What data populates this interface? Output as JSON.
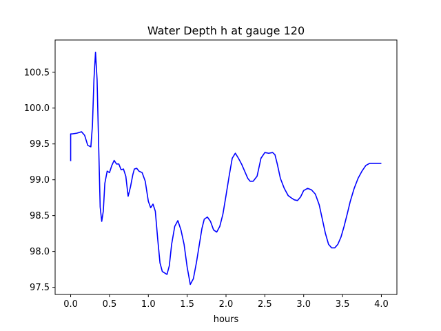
{
  "chart_data": {
    "type": "line",
    "title": "Water Depth h at gauge 120",
    "xlabel": "hours",
    "ylabel": "",
    "xlim": [
      -0.2,
      4.2
    ],
    "ylim": [
      97.4,
      100.95
    ],
    "xticks": [
      0.0,
      0.5,
      1.0,
      1.5,
      2.0,
      2.5,
      3.0,
      3.5,
      4.0
    ],
    "xtick_labels": [
      "0.0",
      "0.5",
      "1.0",
      "1.5",
      "2.0",
      "2.5",
      "3.0",
      "3.5",
      "4.0"
    ],
    "yticks": [
      97.5,
      98.0,
      98.5,
      99.0,
      99.5,
      100.0,
      100.5
    ],
    "ytick_labels": [
      "97.5",
      "98.0",
      "98.5",
      "99.0",
      "99.5",
      "100.0",
      "100.5"
    ],
    "grid": false,
    "color": "#0000ff",
    "series": [
      {
        "x": [
          0.0,
          0.0,
          0.02,
          0.08,
          0.14,
          0.18,
          0.22,
          0.26,
          0.28,
          0.3,
          0.32,
          0.34,
          0.36,
          0.38,
          0.4,
          0.42,
          0.44,
          0.47,
          0.5,
          0.53,
          0.56,
          0.59,
          0.62,
          0.65,
          0.68,
          0.71,
          0.74,
          0.77,
          0.8,
          0.82,
          0.85,
          0.88,
          0.92,
          0.96,
          1.0,
          1.03,
          1.06,
          1.09,
          1.12,
          1.15,
          1.18,
          1.21,
          1.24,
          1.27,
          1.3,
          1.34,
          1.38,
          1.42,
          1.46,
          1.5,
          1.54,
          1.58,
          1.62,
          1.66,
          1.69,
          1.72,
          1.76,
          1.8,
          1.84,
          1.88,
          1.92,
          1.96,
          2.0,
          2.04,
          2.08,
          2.12,
          2.16,
          2.2,
          2.24,
          2.28,
          2.31,
          2.35,
          2.4,
          2.45,
          2.5,
          2.55,
          2.6,
          2.63,
          2.66,
          2.7,
          2.75,
          2.8,
          2.85,
          2.88,
          2.92,
          2.96,
          3.0,
          3.05,
          3.1,
          3.15,
          3.2,
          3.24,
          3.28,
          3.32,
          3.36,
          3.4,
          3.44,
          3.48,
          3.52,
          3.56,
          3.6,
          3.65,
          3.7,
          3.75,
          3.8,
          3.85,
          3.9,
          3.95,
          4.0
        ],
        "y": [
          99.26,
          99.64,
          99.64,
          99.65,
          99.67,
          99.62,
          99.48,
          99.46,
          99.75,
          100.4,
          100.78,
          100.4,
          99.5,
          98.62,
          98.42,
          98.56,
          98.95,
          99.12,
          99.1,
          99.2,
          99.27,
          99.22,
          99.22,
          99.14,
          99.15,
          99.05,
          98.77,
          98.9,
          99.07,
          99.15,
          99.16,
          99.12,
          99.1,
          98.98,
          98.7,
          98.61,
          98.66,
          98.56,
          98.18,
          97.84,
          97.72,
          97.7,
          97.68,
          97.8,
          98.1,
          98.35,
          98.43,
          98.3,
          98.1,
          97.78,
          97.54,
          97.62,
          97.85,
          98.12,
          98.32,
          98.45,
          98.48,
          98.42,
          98.3,
          98.27,
          98.35,
          98.52,
          98.78,
          99.05,
          99.3,
          99.37,
          99.3,
          99.22,
          99.12,
          99.02,
          98.98,
          98.98,
          99.05,
          99.3,
          99.38,
          99.37,
          99.38,
          99.35,
          99.22,
          99.02,
          98.88,
          98.78,
          98.74,
          98.72,
          98.71,
          98.76,
          98.85,
          98.88,
          98.86,
          98.8,
          98.65,
          98.45,
          98.25,
          98.1,
          98.05,
          98.05,
          98.1,
          98.2,
          98.35,
          98.52,
          98.7,
          98.88,
          99.02,
          99.12,
          99.2,
          99.23,
          99.23,
          99.23,
          99.23
        ]
      }
    ]
  }
}
